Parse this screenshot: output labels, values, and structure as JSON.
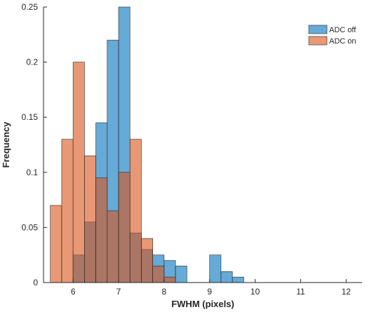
{
  "chart_data": {
    "type": "histogram",
    "title": "",
    "xlabel": "FWHM (pixels)",
    "ylabel": "Frequency",
    "xlim": [
      5.35,
      12.35
    ],
    "ylim": [
      0,
      0.25
    ],
    "xticks": [
      6,
      7,
      8,
      9,
      10,
      11,
      12
    ],
    "yticks": [
      0,
      0.05,
      0.1,
      0.15,
      0.2,
      0.25
    ],
    "ytick_labels": [
      "0",
      "0.05",
      "0.1",
      "0.15",
      "0.2",
      "0.25"
    ],
    "grid": false,
    "legend_position": "top-right",
    "bin_width": 0.25,
    "series": [
      {
        "name": "ADC off",
        "color": "#0072BD",
        "bin_starts": [
          6.0,
          6.25,
          6.5,
          6.75,
          7.0,
          7.25,
          7.5,
          7.75,
          8.0,
          8.25,
          9.0,
          9.25,
          9.5
        ],
        "values": [
          0.025,
          0.055,
          0.145,
          0.22,
          0.25,
          0.045,
          0.03,
          0.025,
          0.02,
          0.015,
          0.025,
          0.01,
          0.005
        ]
      },
      {
        "name": "ADC on",
        "color": "#D95319",
        "bin_starts": [
          5.5,
          5.75,
          6.0,
          6.25,
          6.5,
          6.75,
          7.0,
          7.25,
          7.5,
          7.75,
          8.0
        ],
        "values": [
          0.07,
          0.13,
          0.2,
          0.115,
          0.095,
          0.065,
          0.1,
          0.13,
          0.04,
          0.015,
          0.005
        ]
      }
    ]
  }
}
